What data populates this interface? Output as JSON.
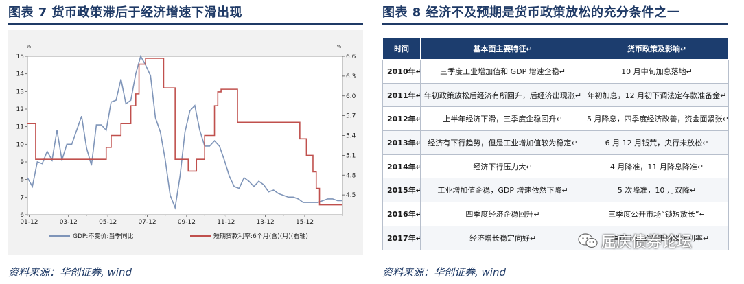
{
  "left": {
    "title": "图表 7 货币政策滞后于经济增速下滑出现",
    "source": "资料来源：华创证券, wind"
  },
  "right": {
    "title": "图表 8 经济不及预期是货币政策放松的充分条件之一",
    "source": "资料来源：华创证券, wind",
    "table": {
      "headers": [
        "时间",
        "基本面主要特征↵",
        "货币政策及影响↵"
      ],
      "rows": [
        {
          "year": "2010年↵",
          "feature": "三季度工业增加值和 GDP 增速企稳↵",
          "policy": "10 月中旬加息落地↵"
        },
        {
          "year": "2011年↵",
          "feature": "年初政策放松后经济有所回升，后经济出现涨↵",
          "policy": "年初加息，12 月初下调法定存款准备金↵"
        },
        {
          "year": "2012年↵",
          "feature": "上半年经济下滑，三季度企稳回升↵",
          "policy": "5 月降息，四季度经济改善，资金面紧张↵"
        },
        {
          "year": "2013年↵",
          "feature": "经济有下行趋势，但是工业增加值较为稳定↵",
          "policy": "6 月 12 月钱荒，央行未放松↵"
        },
        {
          "year": "2014年↵",
          "feature": "经济下行压力大↵",
          "policy": "4 月降准，11 月降息降准↵"
        },
        {
          "year": "2015年↵",
          "feature": "工业增加值企稳，GDP 增速依然下降↵",
          "policy": "5 次降准，10 月双降↵"
        },
        {
          "year": "2016年↵",
          "feature": "四季度经济企稳回升↵",
          "policy": "三季度公开市场“锁短放长”↵"
        },
        {
          "year": "2017年↵",
          "feature": "经济增长稳定向好↵",
          "policy": "一季度上调公开市场操作利率↵"
        }
      ]
    }
  },
  "watermark": "屈庆债券论坛",
  "chart_data": {
    "type": "line",
    "title": "",
    "xlabel": "",
    "x_ticks": [
      "01-12",
      "03-12",
      "05-12",
      "07-12",
      "09-12",
      "11-12",
      "13-12",
      "15-12"
    ],
    "x_range": [
      0,
      192
    ],
    "y_left": {
      "unit": "%",
      "range": [
        6,
        15
      ],
      "ticks": [
        6,
        7,
        8,
        9,
        10,
        11,
        12,
        13,
        14,
        15
      ]
    },
    "y_right": {
      "unit": "%",
      "range": [
        4.2,
        6.6
      ],
      "ticks": [
        4.5,
        4.8,
        5.1,
        5.4,
        5.7,
        6.0,
        6.3,
        6.6
      ]
    },
    "legend_position": "bottom",
    "grid": false,
    "series": [
      {
        "name": "GDP:不变价:当季同比",
        "axis": "left",
        "color": "#7f95b9",
        "x": [
          0,
          3,
          6,
          9,
          12,
          15,
          18,
          21,
          24,
          27,
          30,
          33,
          36,
          39,
          42,
          45,
          48,
          51,
          54,
          57,
          60,
          63,
          66,
          69,
          72,
          75,
          78,
          81,
          84,
          87,
          90,
          93,
          96,
          99,
          102,
          105,
          108,
          111,
          114,
          117,
          120,
          123,
          126,
          129,
          132,
          135,
          138,
          141,
          144,
          147,
          150,
          153,
          156,
          159,
          162,
          165,
          168,
          171,
          174,
          177,
          180,
          183,
          186,
          189,
          192
        ],
        "y": [
          8.1,
          7.6,
          9.0,
          8.9,
          9.6,
          9.1,
          10.8,
          9.1,
          10.0,
          10.0,
          10.8,
          11.6,
          9.8,
          8.8,
          11.1,
          11.1,
          10.8,
          12.4,
          12.5,
          13.7,
          12.3,
          12.5,
          14.0,
          15.0,
          14.5,
          13.9,
          11.5,
          10.7,
          9.1,
          7.1,
          6.4,
          8.2,
          10.7,
          11.9,
          12.2,
          10.8,
          9.9,
          9.9,
          10.2,
          9.9,
          9.1,
          8.2,
          7.6,
          7.5,
          8.1,
          7.9,
          7.6,
          7.9,
          7.7,
          7.3,
          7.4,
          7.2,
          7.1,
          7.0,
          7.0,
          6.9,
          6.7,
          6.7,
          6.7,
          6.7,
          6.8,
          6.9,
          6.9,
          6.8,
          6.8
        ]
      },
      {
        "name": "短期贷款利率:6个月(含)(月)(右轴)",
        "axis": "right",
        "color": "#c0504d",
        "step": true,
        "x": [
          0,
          5,
          20,
          48,
          51,
          54,
          57,
          60,
          63,
          66,
          68,
          72,
          83,
          90,
          98,
          103,
          108,
          114,
          116,
          118,
          128,
          132,
          137,
          156,
          160,
          166,
          170,
          174,
          176,
          178,
          181,
          192
        ],
        "y": [
          5.58,
          5.04,
          5.04,
          5.22,
          5.4,
          5.4,
          5.58,
          5.58,
          5.85,
          6.03,
          6.48,
          6.57,
          6.12,
          5.04,
          4.86,
          5.04,
          5.4,
          5.85,
          6.06,
          6.1,
          5.6,
          5.6,
          5.6,
          5.6,
          5.6,
          5.35,
          5.1,
          4.85,
          4.6,
          4.35,
          4.35,
          4.35
        ]
      }
    ]
  }
}
